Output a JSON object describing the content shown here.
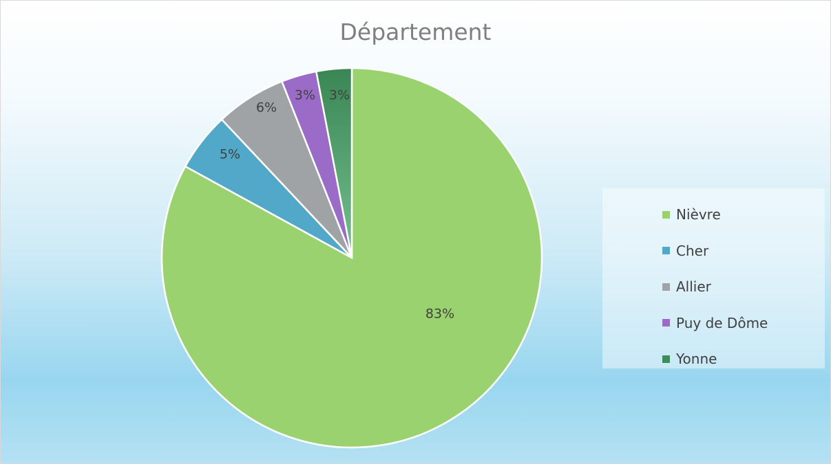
{
  "chart_data": {
    "type": "pie",
    "title": "Département",
    "categories": [
      "Nièvre",
      "Cher",
      "Allier",
      "Puy de Dôme",
      "Yonne"
    ],
    "values": [
      83,
      5,
      6,
      3,
      3
    ],
    "labels": [
      "83%",
      "5%",
      "6%",
      "3%",
      "3%"
    ],
    "colors": [
      "#9ad270",
      "#52a8c8",
      "#a0a3a6",
      "#9a6cc7",
      "#3e8c5c"
    ],
    "legend_position": "right"
  }
}
